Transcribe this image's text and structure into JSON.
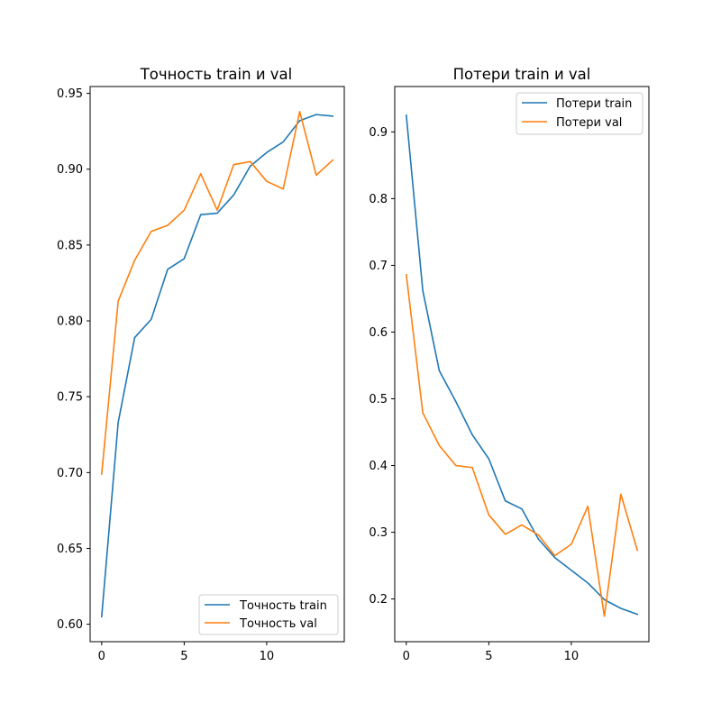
{
  "chart_data": [
    {
      "type": "line",
      "title": "Точность train и val",
      "xlabel": "",
      "ylabel": "",
      "xlim": [
        -0.7,
        14.7
      ],
      "ylim": [
        0.5885,
        0.9545
      ],
      "x_ticks": [
        0,
        5,
        10
      ],
      "y_ticks": [
        0.6,
        0.65,
        0.7,
        0.75,
        0.8,
        0.85,
        0.9,
        0.95
      ],
      "y_tick_labels": [
        "0.60",
        "0.65",
        "0.70",
        "0.75",
        "0.80",
        "0.85",
        "0.90",
        "0.95"
      ],
      "grid": false,
      "legend_position": "lower-right",
      "x": [
        0,
        1,
        2,
        3,
        4,
        5,
        6,
        7,
        8,
        9,
        10,
        11,
        12,
        13,
        14
      ],
      "series": [
        {
          "name": "Точность train",
          "color": "#1f77b4",
          "values": [
            0.605,
            0.733,
            0.789,
            0.801,
            0.834,
            0.841,
            0.87,
            0.871,
            0.883,
            0.902,
            0.911,
            0.918,
            0.932,
            0.936,
            0.935
          ]
        },
        {
          "name": "Точность val",
          "color": "#ff7f0e",
          "values": [
            0.699,
            0.813,
            0.84,
            0.859,
            0.863,
            0.873,
            0.897,
            0.873,
            0.903,
            0.905,
            0.892,
            0.887,
            0.938,
            0.896,
            0.906
          ]
        }
      ]
    },
    {
      "type": "line",
      "title": "Потери train и val",
      "xlabel": "",
      "ylabel": "",
      "xlim": [
        -0.7,
        14.7
      ],
      "ylim": [
        0.136,
        0.968
      ],
      "x_ticks": [
        0,
        5,
        10
      ],
      "y_ticks": [
        0.2,
        0.3,
        0.4,
        0.5,
        0.6,
        0.7,
        0.8,
        0.9
      ],
      "y_tick_labels": [
        "0.2",
        "0.3",
        "0.4",
        "0.5",
        "0.6",
        "0.7",
        "0.8",
        "0.9"
      ],
      "grid": false,
      "legend_position": "upper-right",
      "x": [
        0,
        1,
        2,
        3,
        4,
        5,
        6,
        7,
        8,
        9,
        10,
        11,
        12,
        13,
        14
      ],
      "series": [
        {
          "name": "Потери train",
          "color": "#1f77b4",
          "values": [
            0.925,
            0.662,
            0.542,
            0.496,
            0.446,
            0.41,
            0.347,
            0.335,
            0.29,
            0.262,
            0.243,
            0.224,
            0.199,
            0.186,
            0.177
          ]
        },
        {
          "name": "Потери val",
          "color": "#ff7f0e",
          "values": [
            0.686,
            0.479,
            0.43,
            0.4,
            0.397,
            0.326,
            0.297,
            0.311,
            0.296,
            0.265,
            0.282,
            0.339,
            0.174,
            0.357,
            0.273
          ]
        }
      ]
    }
  ]
}
